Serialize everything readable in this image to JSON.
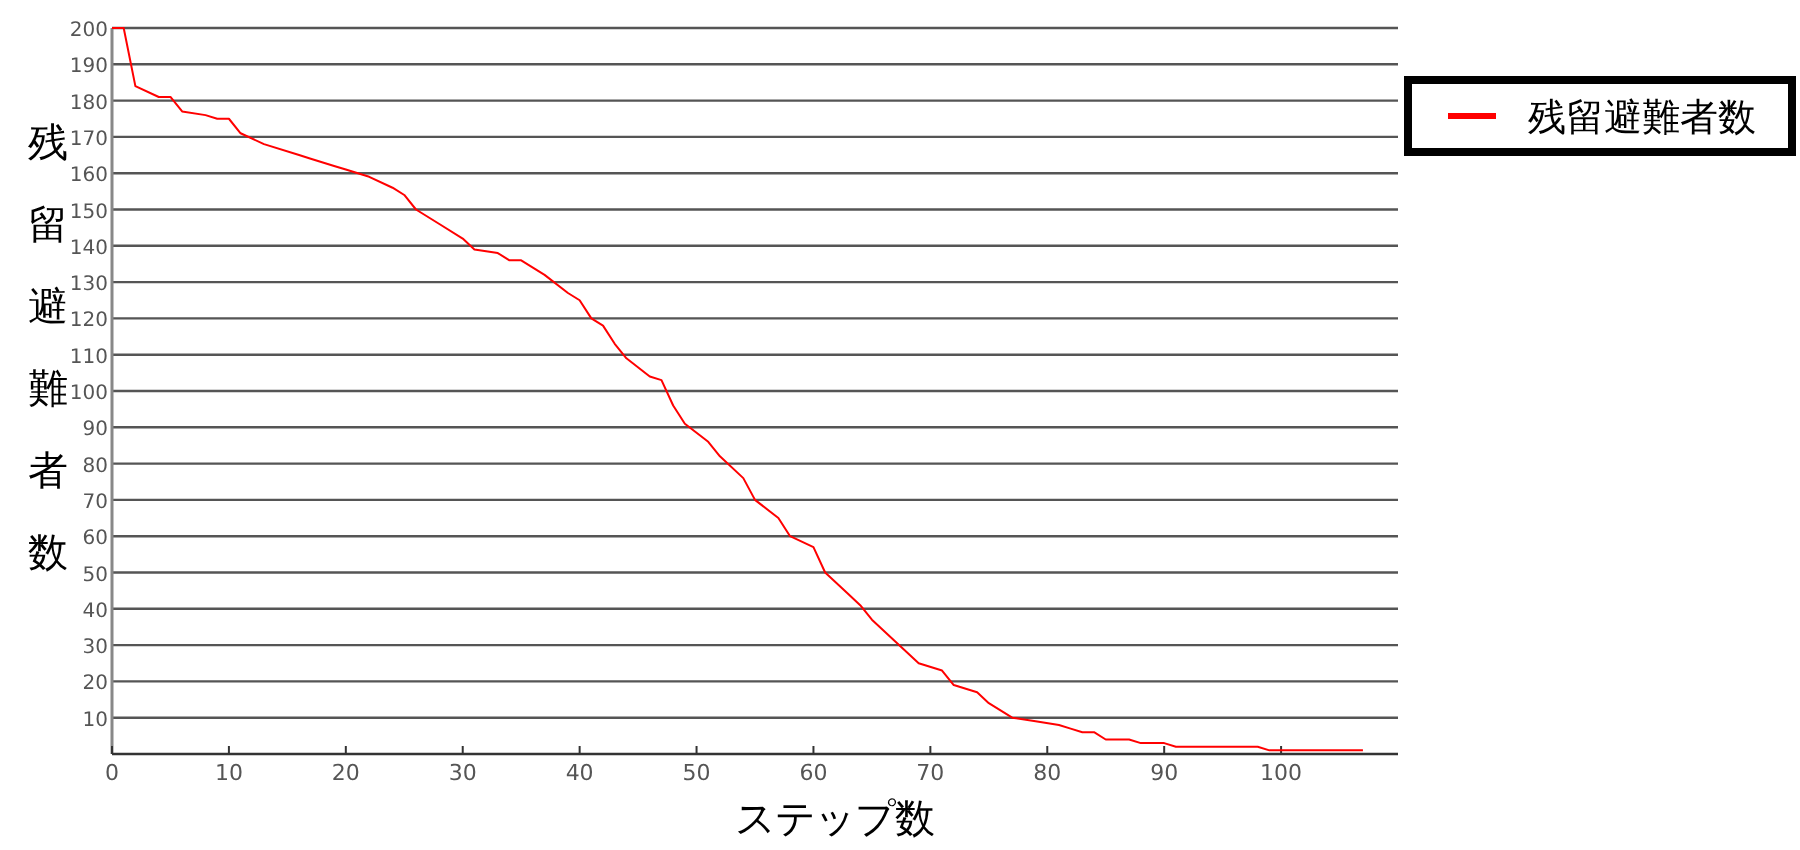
{
  "chart_data": {
    "type": "line",
    "xlabel": "ステップ数",
    "ylabel": "残留避難者数",
    "xlim": [
      0,
      110
    ],
    "xticks": [
      0,
      10,
      20,
      30,
      40,
      50,
      60,
      70,
      80,
      90,
      100
    ],
    "ylim": [
      0,
      200
    ],
    "yticks": [
      10,
      20,
      30,
      40,
      50,
      60,
      70,
      80,
      90,
      100,
      110,
      120,
      130,
      140,
      150,
      160,
      170,
      180,
      190,
      200
    ],
    "grid": "y",
    "legend": "top right",
    "x": [
      0,
      1,
      2,
      4,
      5,
      6,
      8,
      9,
      10,
      11,
      13,
      16,
      17,
      19,
      20,
      22,
      24,
      25,
      26,
      28,
      30,
      31,
      33,
      34,
      35,
      36,
      37,
      39,
      40,
      41,
      42,
      43,
      44,
      46,
      47,
      48,
      49,
      51,
      52,
      54,
      55,
      57,
      58,
      60,
      61,
      63,
      64,
      65,
      67,
      69,
      71,
      72,
      74,
      75,
      76,
      77,
      79,
      81,
      82,
      83,
      84,
      85,
      87,
      88,
      90,
      91,
      98,
      99,
      107
    ],
    "series": [
      {
        "name": "残留避難者数",
        "color": "#ff0000",
        "values": [
          200,
          200,
          184,
          181,
          181,
          177,
          176,
          175,
          175,
          171,
          168,
          165,
          164,
          162,
          161,
          159,
          156,
          154,
          150,
          146,
          142,
          139,
          138,
          136,
          136,
          134,
          132,
          127,
          125,
          120,
          118,
          113,
          109,
          104,
          103,
          96,
          91,
          86,
          82,
          76,
          70,
          65,
          60,
          57,
          50,
          44,
          41,
          37,
          31,
          25,
          23,
          19,
          17,
          14,
          12,
          10,
          9,
          8,
          7,
          6,
          6,
          4,
          4,
          3,
          3,
          2,
          2,
          1,
          1
        ]
      }
    ]
  }
}
